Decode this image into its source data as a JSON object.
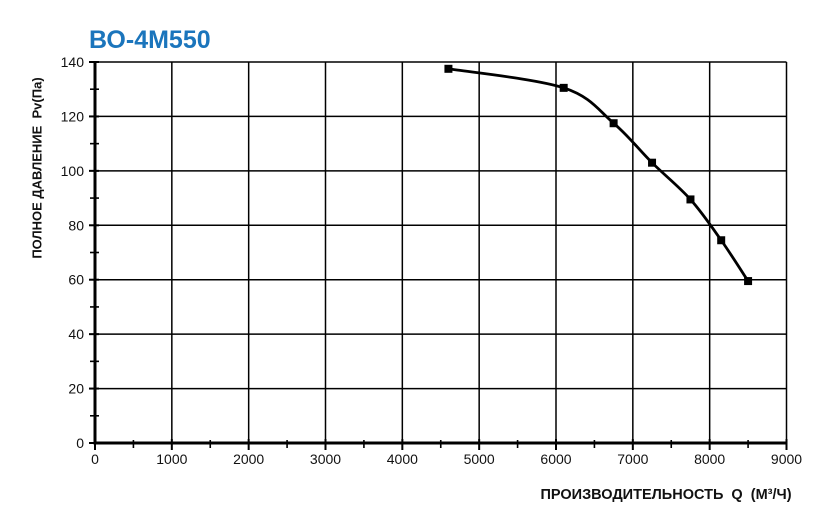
{
  "chart_data": {
    "type": "line",
    "title": "ВО-4М550",
    "title_color": "#1b75bc",
    "xlabel": "ПРОИЗВОДИТЕЛЬНОСТЬ  Q  (М³/Ч)",
    "ylabel": "ПОЛНОЕ ДАВЛЕНИЕ  Pv(Па)",
    "xlim": [
      0,
      9000
    ],
    "ylim": [
      0,
      140
    ],
    "x_ticks": [
      0,
      1000,
      2000,
      3000,
      4000,
      5000,
      6000,
      7000,
      8000,
      9000
    ],
    "y_ticks": [
      0,
      20,
      40,
      60,
      80,
      100,
      120,
      140
    ],
    "x_minor_step": 500,
    "y_minor_step": 10,
    "grid": true,
    "grid_color": "#000000",
    "axis_color": "#000000",
    "text_color": "#111111",
    "legend": "none",
    "series": [
      {
        "name": "ВО-4М550",
        "color": "#000000",
        "marker": "square",
        "points": [
          [
            4600,
            137.5
          ],
          [
            6100,
            130.5
          ],
          [
            6750,
            117.5
          ],
          [
            7250,
            103
          ],
          [
            7750,
            89.5
          ],
          [
            8150,
            74.5
          ],
          [
            8500,
            59.5
          ]
        ]
      }
    ]
  }
}
